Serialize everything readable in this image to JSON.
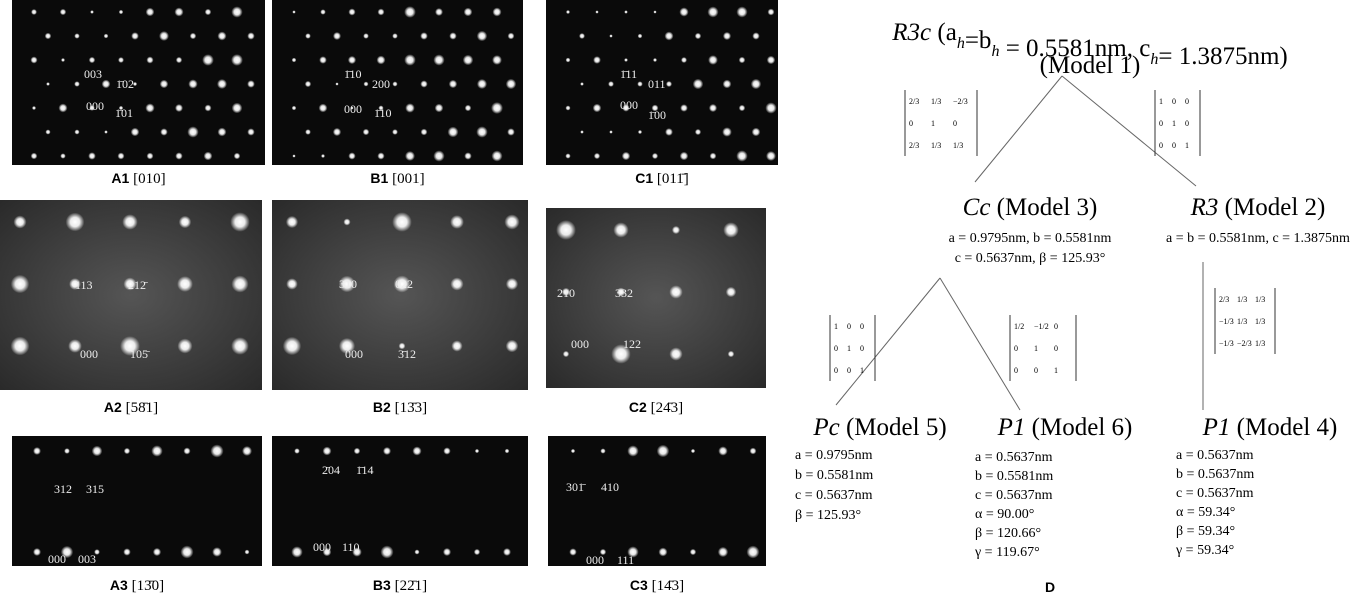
{
  "panels": [
    {
      "label": "A1",
      "zone_axis": "[010]",
      "spots": [
        "003",
        "1̄02",
        "000",
        "1̄01"
      ]
    },
    {
      "label": "B1",
      "zone_axis": "[001]",
      "spots": [
        "1̄10",
        "200",
        "000",
        "1̄10"
      ]
    },
    {
      "label": "C1",
      "zone_axis": "[011̄]",
      "spots": [
        "1̄11",
        "011",
        "000",
        "1̄00"
      ]
    },
    {
      "label": "A2",
      "zone_axis": "[58̄1]",
      "spots": [
        "113",
        "212̄",
        "000",
        "105̄"
      ]
    },
    {
      "label": "B2",
      "zone_axis": "[13̄3]",
      "spots": [
        "310",
        "022",
        "000",
        "3̄12"
      ]
    },
    {
      "label": "C2",
      "zone_axis": "[24̄3]",
      "spots": [
        "210",
        "332",
        "000",
        "122"
      ]
    },
    {
      "label": "A3",
      "zone_axis": "[13̄0]",
      "spots": [
        "312",
        "315",
        "000",
        "003"
      ]
    },
    {
      "label": "B3",
      "zone_axis": "[22̄1]",
      "spots": [
        "2̄04",
        "1̄14",
        "000",
        "110"
      ]
    },
    {
      "label": "C3",
      "zone_axis": "[14̄3]",
      "spots": [
        "301̄",
        "410",
        "000",
        "111"
      ]
    }
  ],
  "diagram": {
    "root": {
      "space_group": "R3c",
      "lattice": [
        {
          "text": " (a",
          "sub": "h"
        },
        {
          "text": "=b",
          "sub": "h"
        },
        {
          "text": " = 0.5581nm, c",
          "sub": "h"
        },
        {
          "text": "= 1.3875nm)"
        }
      ],
      "model": "(Model 1)"
    },
    "nodes": [
      {
        "space_group": "Cc",
        "model": "(Model 3)",
        "params": [
          "a = 0.9795nm, b = 0.5581nm",
          "c = 0.5637nm, β = 125.93°"
        ]
      },
      {
        "space_group": "R3",
        "model": "(Model 2)",
        "params": [
          "a = b = 0.5581nm, c = 1.3875nm"
        ]
      },
      {
        "space_group": "Pc",
        "model": "(Model 5)",
        "params": [
          "a = 0.9795nm",
          "b = 0.5581nm",
          "c = 0.5637nm",
          "β = 125.93°"
        ]
      },
      {
        "space_group": "P1",
        "model": "(Model 6)",
        "params": [
          "a = 0.5637nm",
          "b = 0.5581nm",
          "c = 0.5637nm",
          "α = 90.00°",
          "β = 120.66°",
          "γ = 119.67°"
        ]
      },
      {
        "space_group": "P1",
        "model": "(Model 4)",
        "params": [
          "a = 0.5637nm",
          "b = 0.5637nm",
          "c = 0.5637nm",
          "α = 59.34°",
          "β = 59.34°",
          "γ = 59.34°"
        ]
      }
    ],
    "matrices": [
      [
        [
          "2/3",
          "1/3",
          "−2/3"
        ],
        [
          "0",
          "1",
          "0"
        ],
        [
          "2/3",
          "1/3",
          "1/3"
        ]
      ],
      [
        [
          "1",
          "0",
          "0"
        ],
        [
          "0",
          "1",
          "0"
        ],
        [
          "0",
          "0",
          "1"
        ]
      ],
      [
        [
          "1",
          "0",
          "0"
        ],
        [
          "0",
          "1",
          "0"
        ],
        [
          "0",
          "0",
          "1"
        ]
      ],
      [
        [
          "1/2",
          "−1/2",
          "0"
        ],
        [
          "0",
          "1",
          "0"
        ],
        [
          "0",
          "0",
          "1"
        ]
      ],
      [
        [
          "2/3",
          "1/3",
          "1/3"
        ],
        [
          "−1/3",
          "1/3",
          "1/3"
        ],
        [
          "−1/3",
          "−2/3",
          "1/3"
        ]
      ]
    ],
    "label": "D"
  }
}
